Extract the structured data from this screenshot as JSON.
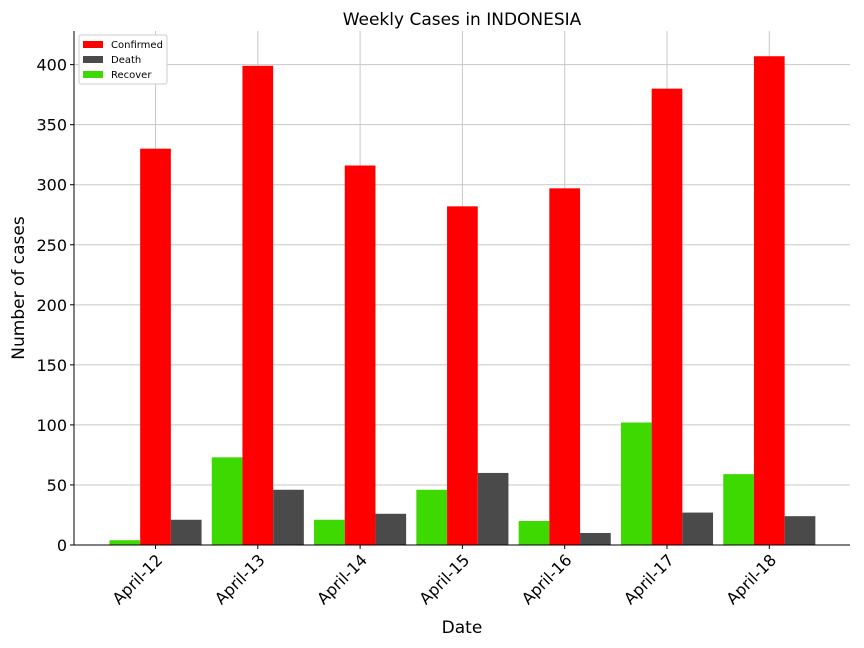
{
  "chart_data": {
    "type": "bar",
    "title": "Weekly Cases in INDONESIA",
    "xlabel": "Date",
    "ylabel": "Number of cases",
    "categories": [
      "April-12",
      "April-13",
      "April-14",
      "April-15",
      "April-16",
      "April-17",
      "April-18"
    ],
    "series": [
      {
        "name": "Recover",
        "color": "#3dd900",
        "values": [
          4,
          73,
          21,
          46,
          20,
          102,
          59
        ]
      },
      {
        "name": "Confirmed",
        "color": "#ff0000",
        "values": [
          330,
          399,
          316,
          282,
          297,
          380,
          407
        ]
      },
      {
        "name": "Death",
        "color": "#4a4a4a",
        "values": [
          21,
          46,
          26,
          60,
          10,
          27,
          24
        ]
      }
    ],
    "legend_order": [
      "Confirmed",
      "Death",
      "Recover"
    ],
    "legend_position": "top-left",
    "ylim": [
      0,
      428
    ],
    "yticks": [
      0,
      50,
      100,
      150,
      200,
      250,
      300,
      350,
      400
    ],
    "grid": true
  }
}
